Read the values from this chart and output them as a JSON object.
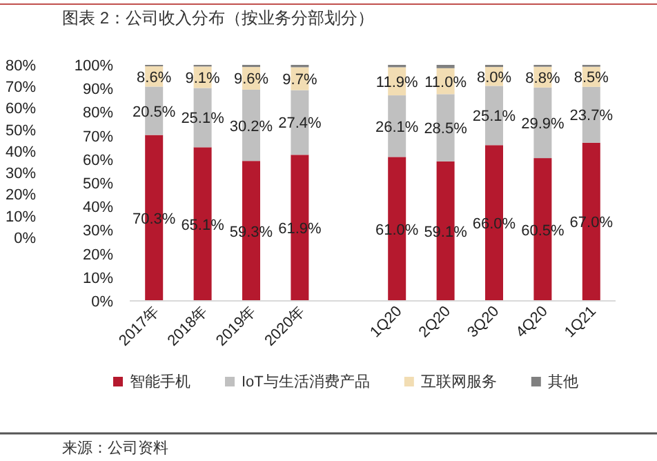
{
  "chart_data": {
    "type": "bar",
    "stacked": true,
    "title": "图表 2：公司收入分布（按业务分部划分）",
    "categories": [
      "2017年",
      "2018年",
      "2019年",
      "2020年",
      null,
      "1Q20",
      "2Q20",
      "3Q20",
      "4Q20",
      "1Q21"
    ],
    "series": [
      {
        "name": "智能手机",
        "color": "#b5192e",
        "values": [
          70.3,
          65.1,
          59.3,
          61.9,
          null,
          61.0,
          59.1,
          66.0,
          60.5,
          67.0
        ],
        "value_labels": [
          "70.3%",
          "65.1%",
          "59.3%",
          "61.9%",
          null,
          "61.0%",
          "59.1%",
          "66.0%",
          "60.5%",
          "67.0%"
        ]
      },
      {
        "name": "IoT与生活消费产品",
        "color": "#c0c0c0",
        "values": [
          20.5,
          25.1,
          30.2,
          27.4,
          null,
          26.1,
          28.5,
          25.1,
          29.9,
          23.7
        ],
        "value_labels": [
          "20.5%",
          "25.1%",
          "30.2%",
          "27.4%",
          null,
          "26.1%",
          "28.5%",
          "25.1%",
          "29.9%",
          "23.7%"
        ]
      },
      {
        "name": "互联网服务",
        "color": "#f2ddb3",
        "values": [
          8.6,
          9.1,
          9.6,
          9.7,
          null,
          11.9,
          11.0,
          8.0,
          8.8,
          8.5
        ],
        "value_labels": [
          "8.6%",
          "9.1%",
          "9.6%",
          "9.7%",
          null,
          "11.9%",
          "11.0%",
          "8.0%",
          "8.8%",
          "8.5%"
        ]
      },
      {
        "name": "其他",
        "color": "#808080",
        "values": [
          0.6,
          0.7,
          0.9,
          1.0,
          null,
          1.0,
          1.4,
          0.9,
          0.8,
          0.8
        ]
      }
    ],
    "ylim": [
      0,
      100
    ],
    "yticks": [
      {
        "value": 0,
        "label": "0%"
      },
      {
        "value": 10,
        "label": "10%"
      },
      {
        "value": 20,
        "label": "20%"
      },
      {
        "value": 30,
        "label": "30%"
      },
      {
        "value": 40,
        "label": "40%"
      },
      {
        "value": 50,
        "label": "50%"
      },
      {
        "value": 60,
        "label": "60%"
      },
      {
        "value": 70,
        "label": "70%"
      },
      {
        "value": 80,
        "label": "80%"
      },
      {
        "value": 90,
        "label": "90%"
      },
      {
        "value": 100,
        "label": "100%"
      }
    ],
    "y2lim": [
      -29.5,
      80
    ],
    "y2ticks": [
      {
        "value": 0,
        "label": "0%"
      },
      {
        "value": 10,
        "label": "10%"
      },
      {
        "value": 20,
        "label": "20%"
      },
      {
        "value": 30,
        "label": "30%"
      },
      {
        "value": 40,
        "label": "40%"
      },
      {
        "value": 50,
        "label": "50%"
      },
      {
        "value": 60,
        "label": "60%"
      },
      {
        "value": 70,
        "label": "70%"
      },
      {
        "value": 80,
        "label": "80%"
      }
    ],
    "legend": "bottom",
    "grid": false,
    "annotations": [
      "来源：公司资料"
    ]
  }
}
